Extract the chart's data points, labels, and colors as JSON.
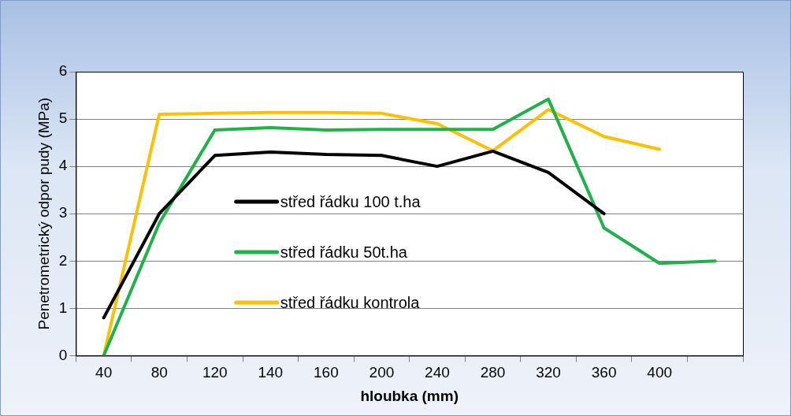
{
  "chart_data": {
    "type": "line",
    "xlabel": "hloubka (mm)",
    "ylabel": "Penetrometrický odpor pudy (MPa)",
    "categories": [
      "40",
      "80",
      "120",
      "140",
      "160",
      "200",
      "240",
      "280",
      "320",
      "360",
      "400",
      null
    ],
    "series": [
      {
        "name": "střed řádku 100 t.ha",
        "color": "#000000",
        "values": [
          0.8,
          3.0,
          4.23,
          4.3,
          4.25,
          4.23,
          4.0,
          4.32,
          3.87,
          3.0,
          null,
          null
        ]
      },
      {
        "name": "střed řádku 50t.ha",
        "color": "#1fb24a",
        "values": [
          0,
          2.8,
          4.77,
          4.82,
          4.77,
          4.78,
          4.78,
          4.78,
          5.42,
          2.7,
          1.95,
          2.0
        ]
      },
      {
        "name": "střed řádku kontrola",
        "color": "#ffc000",
        "values": [
          0,
          5.1,
          5.12,
          5.14,
          5.14,
          5.12,
          4.9,
          4.33,
          5.2,
          4.63,
          4.36,
          null
        ]
      }
    ],
    "ylim": [
      0,
      6
    ],
    "yticks": [
      0,
      1,
      2,
      3,
      4,
      5,
      6
    ],
    "grid": "y",
    "legend": "center",
    "marker": "none",
    "line_style": "solid"
  }
}
